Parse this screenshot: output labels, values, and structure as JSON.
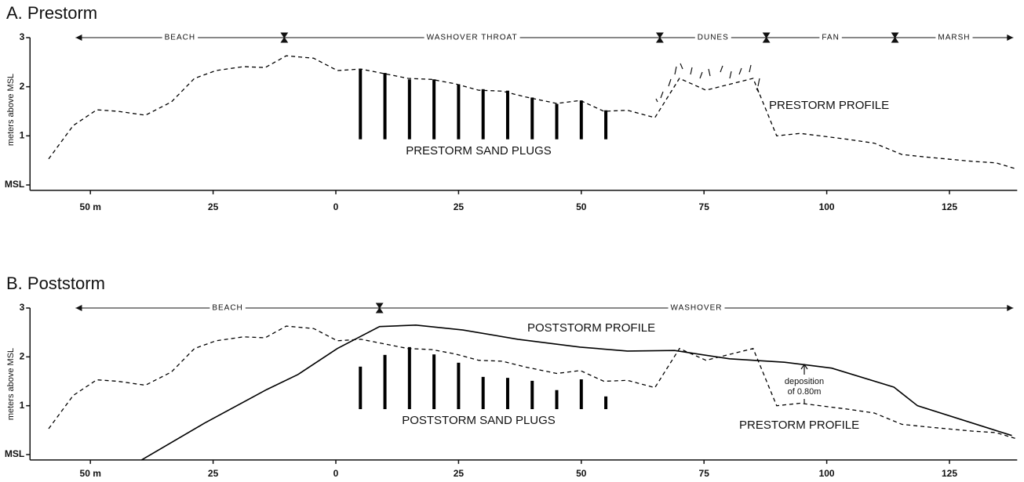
{
  "chart_data": [
    {
      "type": "line",
      "title": "A. Prestorm",
      "y_label": "meters above MSL",
      "xlim": [
        -62.3,
        138.8
      ],
      "ylim": [
        -0.11,
        3
      ],
      "xticks": [
        {
          "value": -50,
          "label": "50 m"
        },
        {
          "value": -25,
          "label": "25"
        },
        0,
        25,
        50,
        75,
        100,
        125
      ],
      "yticks": [
        {
          "value": 0,
          "label": "MSL"
        },
        1,
        2,
        3
      ],
      "zones": [
        {
          "label": "BEACH",
          "start": -53,
          "end": -10.5
        },
        {
          "label": "WASHOVER THROAT",
          "start": -10.5,
          "end": 66
        },
        {
          "label": "DUNES",
          "start": 66,
          "end": 87.7
        },
        {
          "label": "FAN",
          "start": 87.7,
          "end": 113.9
        },
        {
          "label": "MARSH",
          "start": 113.9,
          "end": 138
        }
      ],
      "series": [
        {
          "name": "PRESTORM PROFILE",
          "style": "dashed",
          "color": "#000000",
          "x": [
            -58.5,
            -53.5,
            -48.7,
            -44.4,
            -38.8,
            -33.5,
            -28.8,
            -24.4,
            -18.8,
            -14.4,
            -10.1,
            -4.5,
            0.3,
            5.1,
            14.7,
            19.5,
            24.3,
            29.1,
            33.9,
            38.7,
            45,
            49.8,
            54.6,
            59.4,
            65,
            70,
            75.4,
            85,
            89.8,
            94.6,
            104.2,
            109.7,
            115.3,
            120.1,
            129.7,
            134.5,
            138.8
          ],
          "values": [
            0.53,
            1.21,
            1.53,
            1.5,
            1.42,
            1.69,
            2.17,
            2.33,
            2.41,
            2.39,
            2.63,
            2.58,
            2.33,
            2.36,
            2.17,
            2.15,
            2.06,
            1.93,
            1.91,
            1.79,
            1.66,
            1.72,
            1.5,
            1.52,
            1.37,
            2.17,
            1.93,
            2.17,
            1.0,
            1.05,
            0.93,
            0.85,
            0.62,
            0.57,
            0.48,
            0.45,
            0.32
          ]
        }
      ],
      "plugs": {
        "name": "PRESTORM SAND PLUGS",
        "color": "#000000",
        "x": [
          5,
          10,
          15,
          20,
          25,
          30,
          35,
          40,
          45,
          50,
          55
        ],
        "top": [
          2.35,
          2.28,
          2.15,
          2.15,
          2.05,
          1.95,
          1.92,
          1.78,
          1.65,
          1.72,
          1.52
        ],
        "bottom": [
          0.93,
          0.93,
          0.93,
          0.93,
          0.93,
          0.93,
          0.93,
          0.93,
          0.93,
          0.93,
          0.93
        ]
      }
    },
    {
      "type": "line",
      "title": "B. Poststorm",
      "y_label": "meters above MSL",
      "xlim": [
        -62.3,
        138.8
      ],
      "ylim": [
        -0.11,
        3
      ],
      "xticks": [
        {
          "value": -50,
          "label": "50 m"
        },
        {
          "value": -25,
          "label": "25"
        },
        0,
        25,
        50,
        75,
        100,
        125
      ],
      "yticks": [
        {
          "value": 0,
          "label": "MSL"
        },
        1,
        2,
        3
      ],
      "zones": [
        {
          "label": "BEACH",
          "start": -53,
          "end": 8.9
        },
        {
          "label": "WASHOVER",
          "start": 8.9,
          "end": 138
        }
      ],
      "series": [
        {
          "name": "POSTSTORM PROFILE",
          "style": "solid",
          "color": "#000000",
          "x": [
            -39.6,
            -26.8,
            -14.1,
            -7.7,
            0.3,
            8.9,
            16.3,
            25.9,
            37.1,
            49.8,
            59.4,
            69,
            80.2,
            91.4,
            101,
            113.7,
            118.5,
            137.7
          ],
          "values": [
            -0.11,
            0.64,
            1.33,
            1.64,
            2.17,
            2.62,
            2.65,
            2.55,
            2.36,
            2.2,
            2.12,
            2.13,
            1.96,
            1.89,
            1.77,
            1.38,
            1.0,
            0.39
          ]
        },
        {
          "name": "PRESTORM PROFILE",
          "style": "dashed",
          "color": "#000000",
          "x": [
            -58.5,
            -53.5,
            -48.7,
            -44.4,
            -38.8,
            -33.5,
            -28.8,
            -24.4,
            -18.8,
            -14.4,
            -10.1,
            -4.5,
            0.3,
            5.1,
            14.7,
            19.5,
            24.3,
            29.1,
            33.9,
            38.7,
            45,
            49.8,
            54.6,
            59.4,
            65,
            70,
            75.4,
            85,
            89.8,
            94.6,
            104.2,
            109.7,
            115.3,
            120.1,
            129.7,
            134.5,
            138.8
          ],
          "values": [
            0.53,
            1.21,
            1.53,
            1.5,
            1.42,
            1.69,
            2.17,
            2.33,
            2.41,
            2.39,
            2.63,
            2.58,
            2.33,
            2.36,
            2.17,
            2.15,
            2.06,
            1.93,
            1.91,
            1.79,
            1.66,
            1.72,
            1.5,
            1.52,
            1.37,
            2.17,
            1.93,
            2.17,
            1.0,
            1.05,
            0.93,
            0.85,
            0.62,
            0.57,
            0.48,
            0.45,
            0.32
          ]
        }
      ],
      "plugs": {
        "name": "POSTSTORM SAND PLUGS",
        "color": "#000000",
        "x": [
          5,
          10,
          15,
          20,
          25,
          30,
          35,
          40,
          45,
          50,
          55
        ],
        "top": [
          1.8,
          2.04,
          2.2,
          2.05,
          1.88,
          1.59,
          1.57,
          1.51,
          1.32,
          1.54,
          1.19
        ],
        "bottom": [
          0.93,
          0.93,
          0.93,
          0.93,
          0.93,
          0.93,
          0.93,
          0.93,
          0.93,
          0.93,
          0.93
        ]
      },
      "annotations": [
        "deposition",
        "of 0.80m"
      ]
    }
  ]
}
